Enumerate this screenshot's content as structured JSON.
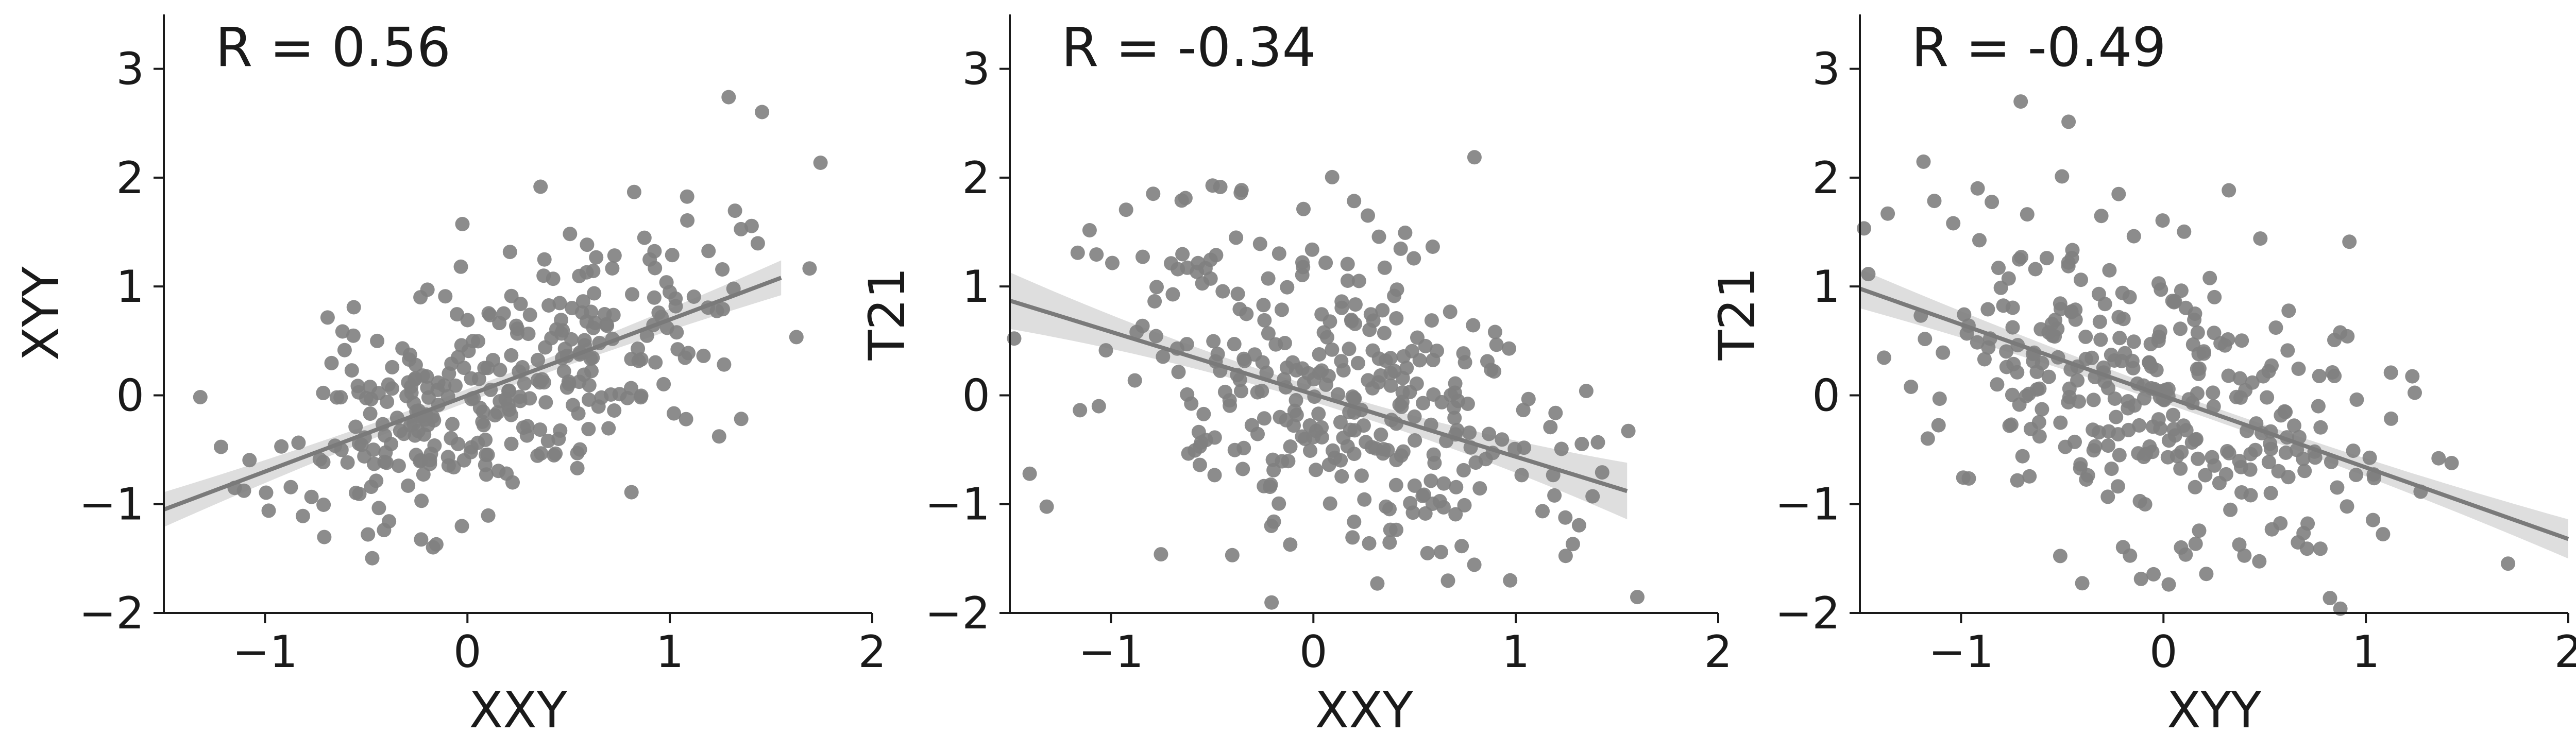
{
  "chart_data": [
    {
      "type": "scatter",
      "annotation": "R = 0.56",
      "xlabel": "XXY",
      "ylabel": "XYY",
      "xlim": [
        -1.5,
        2
      ],
      "ylim": [
        -2,
        3.5
      ],
      "xticks": [
        -1,
        0,
        1,
        2
      ],
      "xtick_labels": [
        "−1",
        "0",
        "1",
        "2"
      ],
      "yticks": [
        -2,
        -1,
        0,
        1,
        2,
        3
      ],
      "ytick_labels": [
        "−2",
        "−1",
        "0",
        "1",
        "2",
        "3"
      ],
      "fit": {
        "x": [
          -1.5,
          1.55
        ],
        "y": [
          -1.05,
          1.08
        ],
        "ci_halfwidth_center": 0.06,
        "ci_halfwidth_edge": 0.16
      },
      "gen": {
        "n": 330,
        "x_mean": 0.15,
        "x_sd": 0.55,
        "slope": 0.69,
        "intercept": -0.05,
        "noise_sd": 0.55,
        "seed": 11
      }
    },
    {
      "type": "scatter",
      "annotation": "R = -0.34",
      "xlabel": "XXY",
      "ylabel": "T21",
      "xlim": [
        -1.5,
        2
      ],
      "ylim": [
        -2,
        3.5
      ],
      "xticks": [
        -1,
        0,
        1,
        2
      ],
      "xtick_labels": [
        "−1",
        "0",
        "1",
        "2"
      ],
      "yticks": [
        -2,
        -1,
        0,
        1,
        2,
        3
      ],
      "ytick_labels": [
        "−2",
        "−1",
        "0",
        "1",
        "2",
        "3"
      ],
      "fit": {
        "x": [
          -1.5,
          1.55
        ],
        "y": [
          0.87,
          -0.88
        ],
        "ci_halfwidth_center": 0.07,
        "ci_halfwidth_edge": 0.26
      },
      "gen": {
        "n": 330,
        "x_mean": 0.1,
        "x_sd": 0.55,
        "slope": -0.57,
        "intercept": 0.02,
        "noise_sd": 0.8,
        "seed": 23
      }
    },
    {
      "type": "scatter",
      "annotation": "R = -0.49",
      "xlabel": "XYY",
      "ylabel": "T21",
      "xlim": [
        -1.5,
        2
      ],
      "ylim": [
        -2,
        3.5
      ],
      "xticks": [
        -1,
        0,
        1,
        2
      ],
      "xtick_labels": [
        "−1",
        "0",
        "1",
        "2"
      ],
      "yticks": [
        -2,
        -1,
        0,
        1,
        2,
        3
      ],
      "ytick_labels": [
        "−2",
        "−1",
        "0",
        "1",
        "2",
        "3"
      ],
      "fit": {
        "x": [
          -1.5,
          2.0
        ],
        "y": [
          0.98,
          -1.32
        ],
        "ci_halfwidth_center": 0.06,
        "ci_halfwidth_edge": 0.18
      },
      "gen": {
        "n": 330,
        "x_mean": 0.0,
        "x_sd": 0.6,
        "slope": -0.66,
        "intercept": 0.0,
        "noise_sd": 0.72,
        "seed": 37
      }
    }
  ],
  "colors": {
    "points": "#808080",
    "fit_line": "#7a7a7a",
    "ci_band": "#d3d3d3",
    "axis": "#1a1a1a",
    "text": "#1a1a1a"
  }
}
